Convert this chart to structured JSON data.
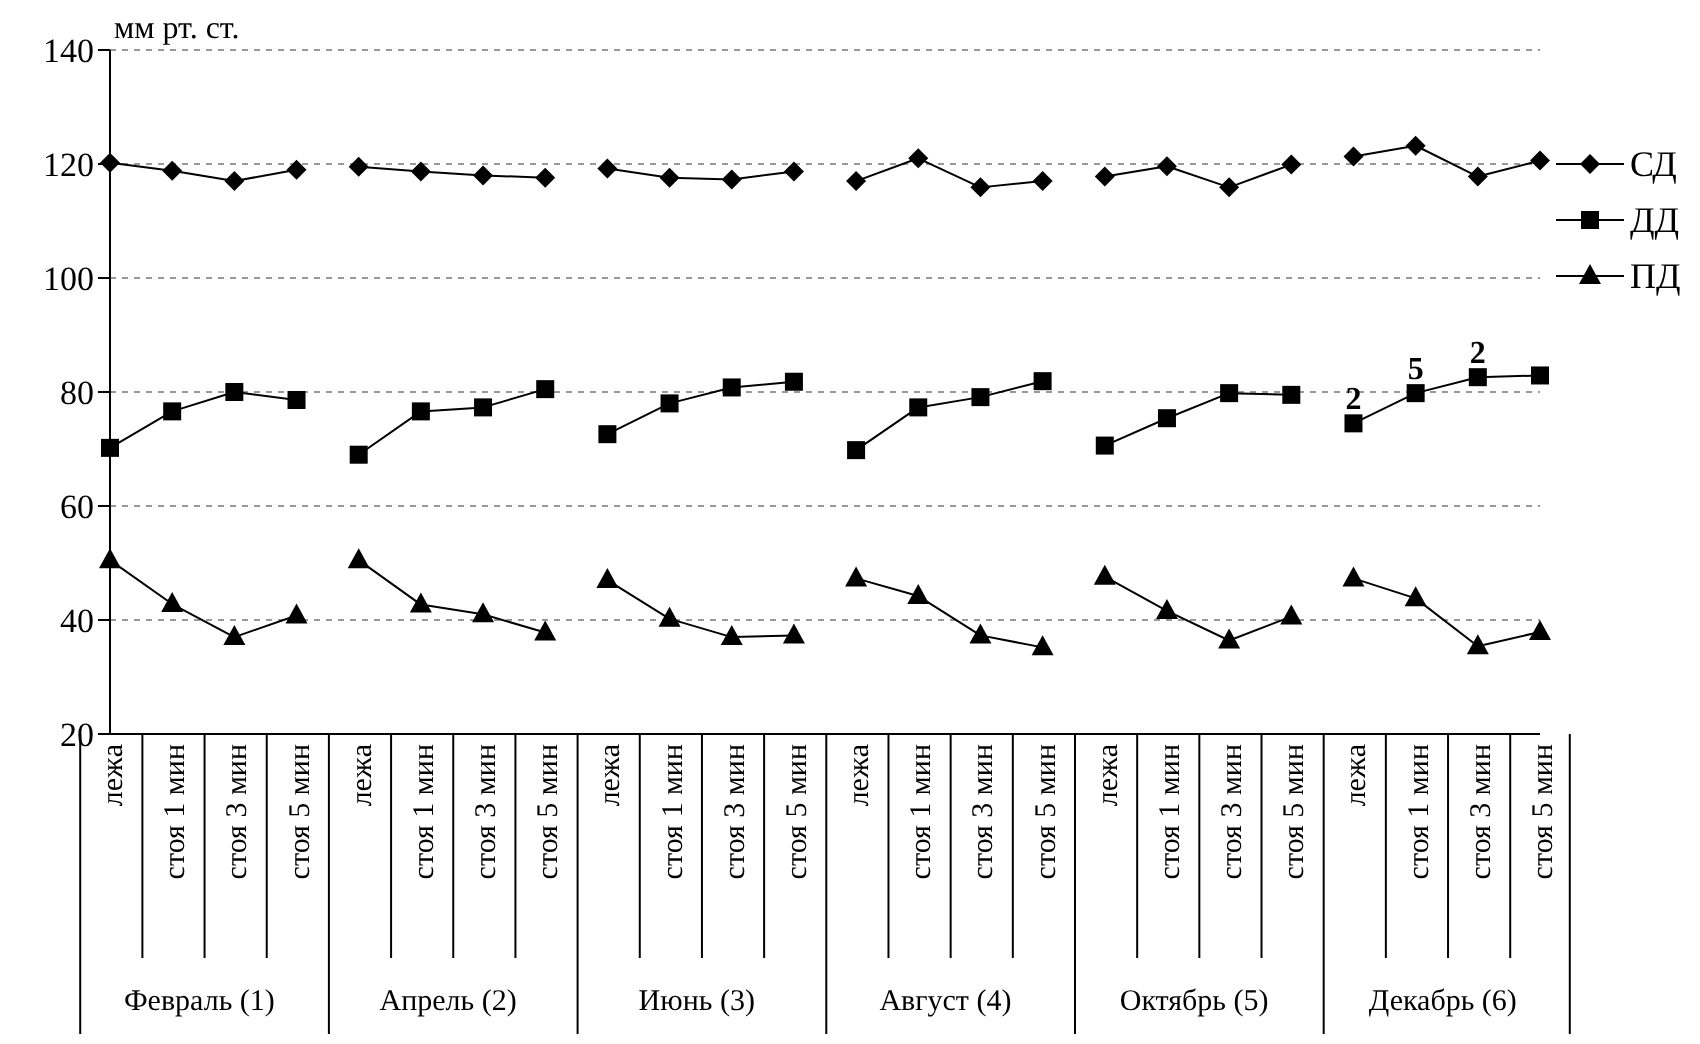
{
  "chart_data": {
    "type": "line",
    "ylabel": "мм рт. ст.",
    "categories": [
      "лежа",
      "стоя 1 мин",
      "стоя 3 мин",
      "стоя 5 мин",
      "лежа",
      "стоя 1 мин",
      "стоя 3 мин",
      "стоя 5 мин",
      "лежа",
      "стоя 1 мин",
      "стоя 3 мин",
      "стоя 5 мин",
      "лежа",
      "стоя 1 мин",
      "стоя 3 мин",
      "стоя 5 мин",
      "лежа",
      "стоя 1 мин",
      "стоя 3 мин",
      "стоя 5 мин",
      "лежа",
      "стоя 1 мин",
      "стоя 3 мин",
      "стоя 5 мин"
    ],
    "series": [
      {
        "name": "СД",
        "color": "#000000",
        "marker": "diamond",
        "values": [
          120.2,
          118.8,
          117,
          119,
          119.5,
          118.7,
          118,
          117.6,
          119.2,
          117.6,
          117.3,
          118.7,
          117,
          121,
          115.9,
          117,
          117.8,
          119.6,
          115.9,
          119.9,
          121.3,
          123.2,
          117.8,
          120.6
        ]
      },
      {
        "name": "ДД",
        "color": "#000000",
        "marker": "square",
        "values": [
          70.2,
          76.6,
          80,
          78.6,
          69,
          76.6,
          77.3,
          80.5,
          72.6,
          78,
          80.8,
          81.8,
          69.8,
          77.3,
          79.1,
          81.9,
          70.6,
          75.4,
          79.8,
          79.5,
          74.5,
          79.8,
          82.6,
          82.9
        ]
      },
      {
        "name": "ПД",
        "color": "#000000",
        "marker": "triangle",
        "values": [
          50.5,
          42.8,
          37,
          40.8,
          50.5,
          42.7,
          41,
          37.8,
          47,
          40.2,
          37,
          37.3,
          47.3,
          44.2,
          37.3,
          35.2,
          47.6,
          41.6,
          36.4,
          40.6,
          47.3,
          43.8,
          35.4,
          37.9
        ]
      }
    ],
    "annotations": [
      "Февраль (1)",
      "Апрель (2)",
      "Июнь (3)",
      "Август (4)",
      "Октябрь (5)",
      "Декабрь (6)",
      "2",
      "5",
      "2"
    ],
    "ylim": [
      20,
      140
    ],
    "yticks": [
      20,
      40,
      60,
      80,
      100,
      120,
      140
    ],
    "grid": "y",
    "legend": "right",
    "line_style": "solid"
  }
}
